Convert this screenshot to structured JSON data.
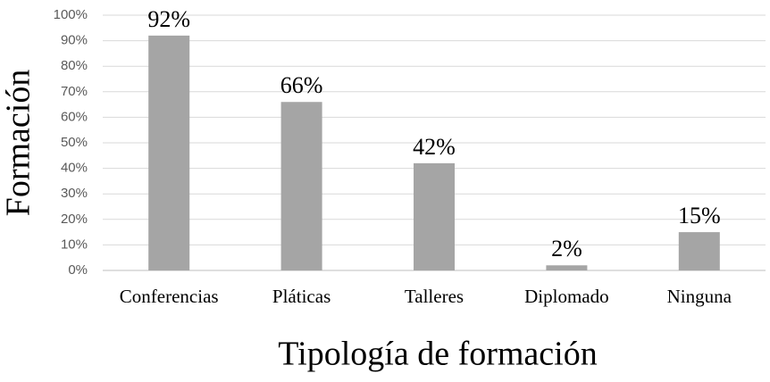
{
  "chart_data": {
    "type": "bar",
    "x_label": "Tipología de formación",
    "y_label": "Formación",
    "categories": [
      "Conferencias",
      "Pláticas",
      "Talleres",
      "Diplomado",
      "Ninguna"
    ],
    "values": [
      92,
      66,
      42,
      2,
      15
    ],
    "value_labels": [
      "92%",
      "66%",
      "42%",
      "2%",
      "15%"
    ],
    "color": "#a5a5a5",
    "ylim": [
      0,
      100
    ],
    "yticks": [
      {
        "value": 0,
        "label": "0%"
      },
      {
        "value": 10,
        "label": "10%"
      },
      {
        "value": 20,
        "label": "20%"
      },
      {
        "value": 30,
        "label": "30%"
      },
      {
        "value": 40,
        "label": "40%"
      },
      {
        "value": 50,
        "label": "50%"
      },
      {
        "value": 60,
        "label": "60%"
      },
      {
        "value": 70,
        "label": "70%"
      },
      {
        "value": 80,
        "label": "80%"
      },
      {
        "value": 90,
        "label": "90%"
      },
      {
        "value": 100,
        "label": "100%"
      }
    ],
    "grid": true
  }
}
